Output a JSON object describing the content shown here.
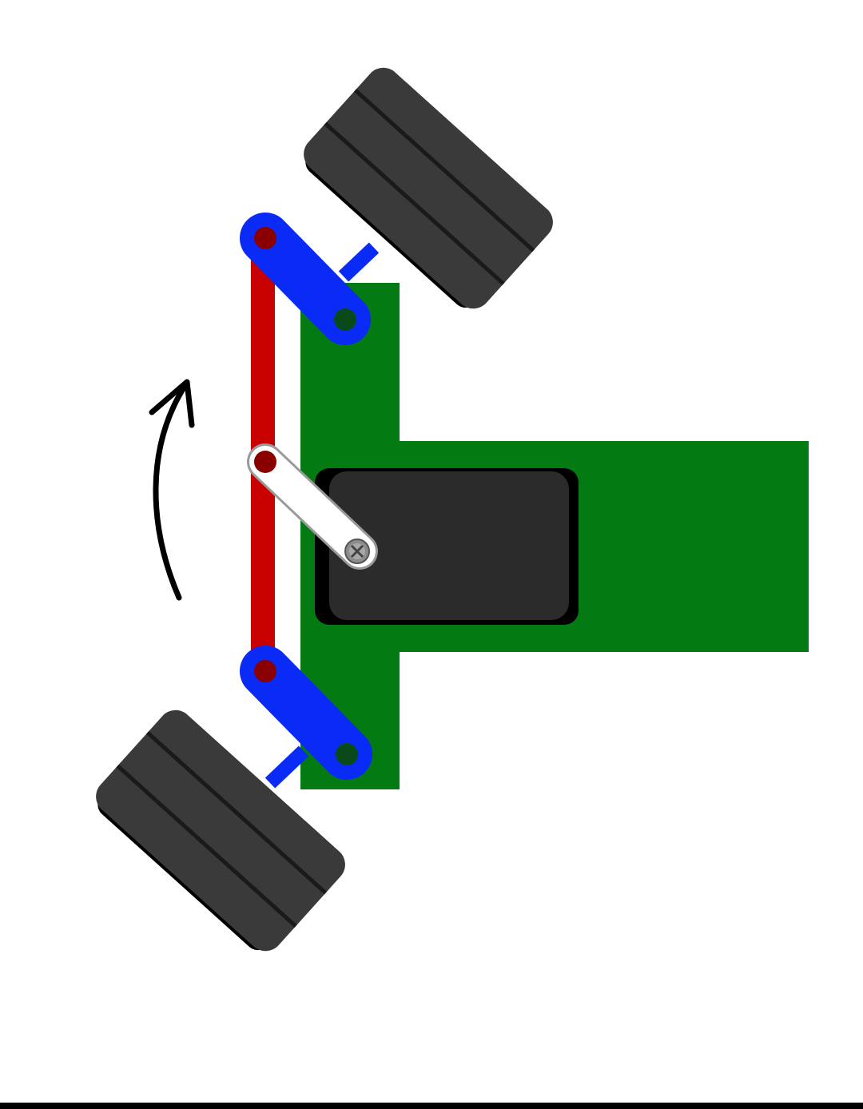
{
  "diagram": {
    "steering_angle_deg": 35,
    "rotation_direction": "counterclockwise",
    "colors": {
      "chassis": "#047a12",
      "tire": "#3a3a3a",
      "tire_groove": "#1a1a1a",
      "steering_knuckle": "#0a2af5",
      "tie_rod": "#c80000",
      "pivot_red": "#8a0000",
      "pivot_green": "#0a4a1a",
      "servo_body": "#2b2b2b",
      "servo_horn": "#ffffff",
      "arrow": "#000000",
      "background": "#ffffff",
      "bottom_bar": "#000000"
    },
    "icons": {
      "rotation_arrow": "curved-arrow-up-icon",
      "servo_screw": "phillips-screw-icon"
    }
  }
}
